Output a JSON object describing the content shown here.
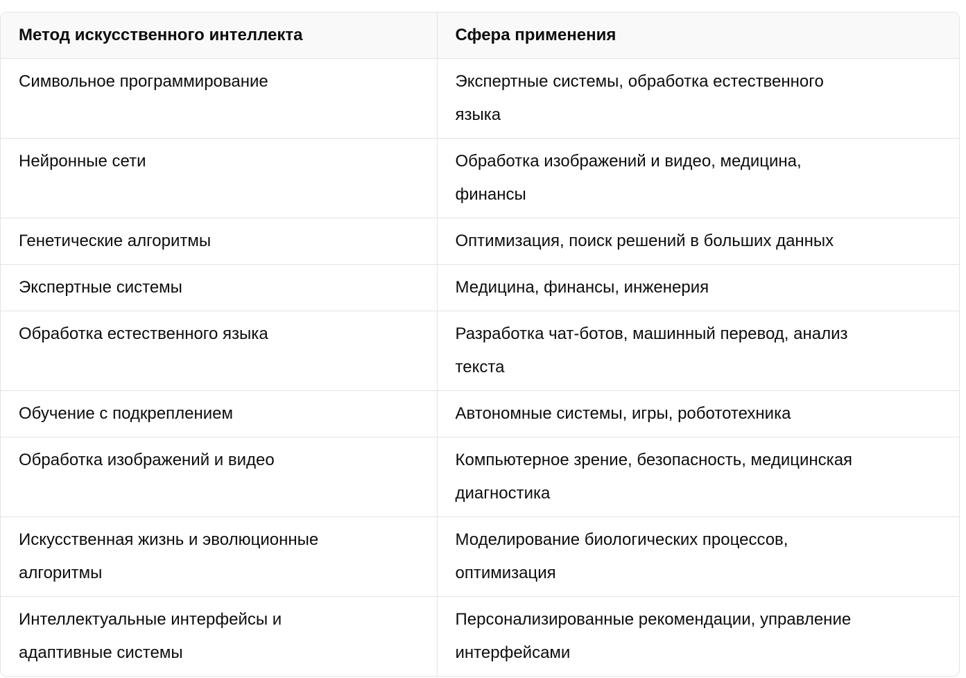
{
  "table": {
    "headers": [
      "Метод искусственного интеллекта",
      "Сфера применения"
    ],
    "rows": [
      {
        "method": [
          "Символьное программирование"
        ],
        "application": [
          "Экспертные системы, обработка естественного",
          "языка"
        ]
      },
      {
        "method": [
          "Нейронные сети"
        ],
        "application": [
          "Обработка изображений и видео, медицина,",
          "финансы"
        ]
      },
      {
        "method": [
          "Генетические алгоритмы"
        ],
        "application": [
          "Оптимизация, поиск решений в больших данных"
        ]
      },
      {
        "method": [
          "Экспертные системы"
        ],
        "application": [
          "Медицина, финансы, инженерия"
        ]
      },
      {
        "method": [
          "Обработка естественного языка"
        ],
        "application": [
          "Разработка чат-ботов, машинный перевод, анализ",
          "текста"
        ]
      },
      {
        "method": [
          "Обучение с подкреплением"
        ],
        "application": [
          "Автономные системы, игры, робототехника"
        ]
      },
      {
        "method": [
          "Обработка изображений и видео"
        ],
        "application": [
          "Компьютерное зрение, безопасность, медицинская",
          "диагностика"
        ]
      },
      {
        "method": [
          "Искусственная жизнь и эволюционные",
          "алгоритмы"
        ],
        "application": [
          "Моделирование биологических процессов,",
          "оптимизация"
        ]
      },
      {
        "method": [
          "Интеллектуальные интерфейсы и",
          "адаптивные системы"
        ],
        "application": [
          "Персонализированные рекомендации, управление",
          "интерфейсами"
        ]
      }
    ]
  }
}
